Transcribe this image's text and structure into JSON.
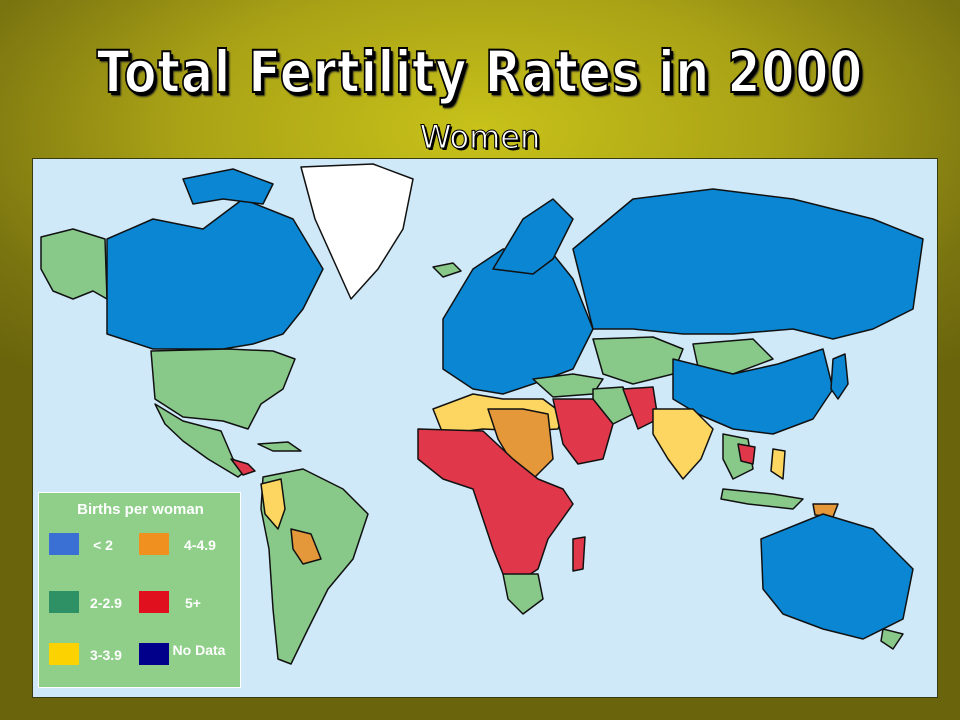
{
  "title": "Total Fertility Rates in 2000",
  "subtitle": "Women",
  "legend": {
    "title": "Births per woman",
    "items": [
      {
        "label": "< 2",
        "color": "#3a6fd4"
      },
      {
        "label": "4-4.9",
        "color": "#f0901e"
      },
      {
        "label": "2-2.9",
        "color": "#2e9166"
      },
      {
        "label": "5+",
        "color": "#e0101e"
      },
      {
        "label": "3-3.9",
        "color": "#fcd200"
      },
      {
        "label": "No Data",
        "color": "#00008b"
      }
    ]
  },
  "map_colors": {
    "ocean": "#cfe9f8",
    "lt2": "#0a86d3",
    "r2_29": "#88c98a",
    "r3_39": "#fcd660",
    "r4_49": "#e5983a",
    "r5plus": "#e0384a",
    "no_data": "#ffffff",
    "border": "#111111"
  }
}
